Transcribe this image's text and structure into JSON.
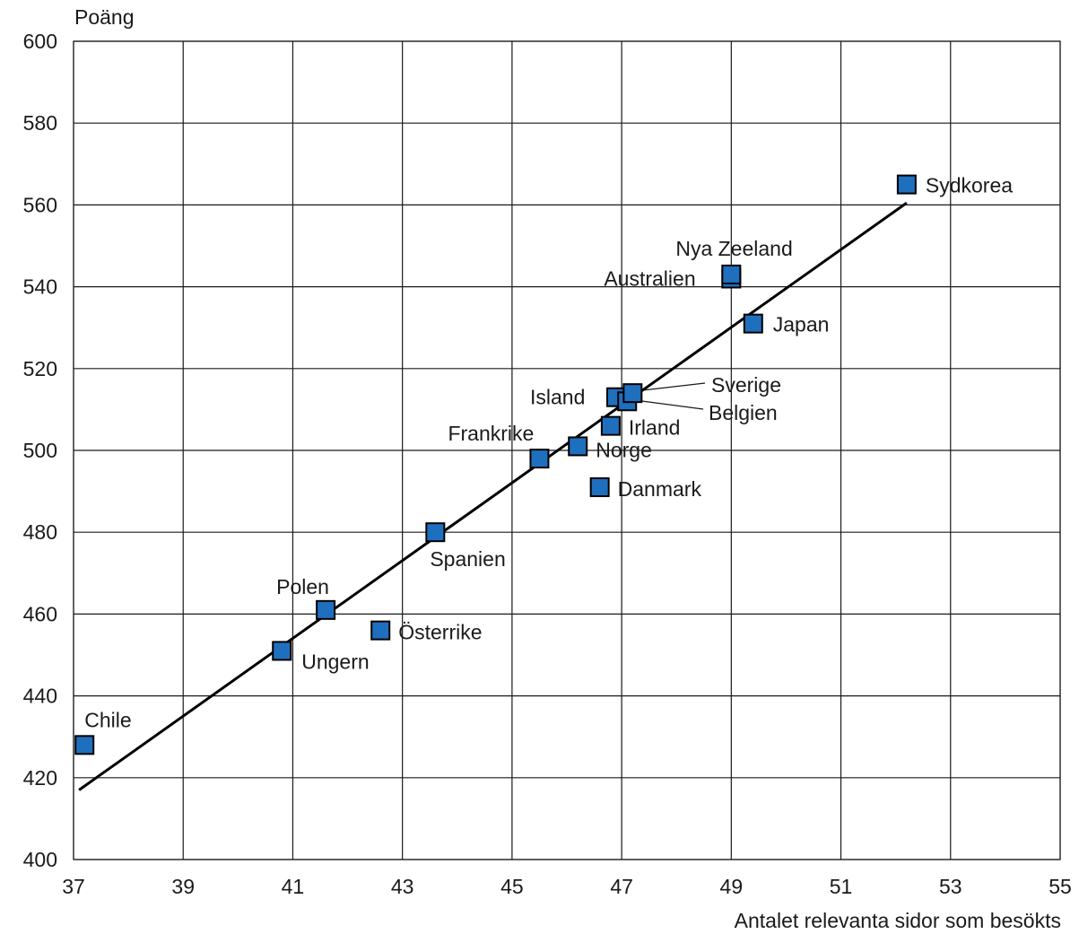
{
  "chart_data": {
    "type": "scatter",
    "xlabel": "Antalet relevanta sidor som besökts",
    "ylabel": "Poäng",
    "xlim": [
      37,
      55
    ],
    "ylim": [
      400,
      600
    ],
    "xticks": [
      37,
      39,
      41,
      43,
      45,
      47,
      49,
      51,
      53,
      55
    ],
    "yticks": [
      400,
      420,
      440,
      460,
      480,
      500,
      520,
      540,
      560,
      580,
      600
    ],
    "grid": true,
    "marker": {
      "shape": "square",
      "color": "#1f6fbf"
    },
    "trendline": {
      "from": [
        37.1,
        417
      ],
      "to": [
        52.2,
        560.5
      ],
      "color": "#000000"
    },
    "points": [
      {
        "label": "Chile",
        "x": 37.2,
        "y": 428
      },
      {
        "label": "Ungern",
        "x": 40.8,
        "y": 451
      },
      {
        "label": "Polen",
        "x": 41.6,
        "y": 461
      },
      {
        "label": "Österrike",
        "x": 42.6,
        "y": 456
      },
      {
        "label": "Spanien",
        "x": 43.6,
        "y": 480
      },
      {
        "label": "Frankrike",
        "x": 45.5,
        "y": 498
      },
      {
        "label": "Norge",
        "x": 46.2,
        "y": 501
      },
      {
        "label": "Danmark",
        "x": 46.6,
        "y": 491
      },
      {
        "label": "Irland",
        "x": 46.8,
        "y": 506
      },
      {
        "label": "Island",
        "x": 46.9,
        "y": 513
      },
      {
        "label": "Belgien",
        "x": 47.1,
        "y": 512
      },
      {
        "label": "Sverige",
        "x": 47.2,
        "y": 514
      },
      {
        "label": "Australien",
        "x": 49.0,
        "y": 542
      },
      {
        "label": "Nya Zeeland",
        "x": 49.0,
        "y": 543
      },
      {
        "label": "Japan",
        "x": 49.4,
        "y": 531
      },
      {
        "label": "Sydkorea",
        "x": 52.2,
        "y": 565
      }
    ]
  }
}
